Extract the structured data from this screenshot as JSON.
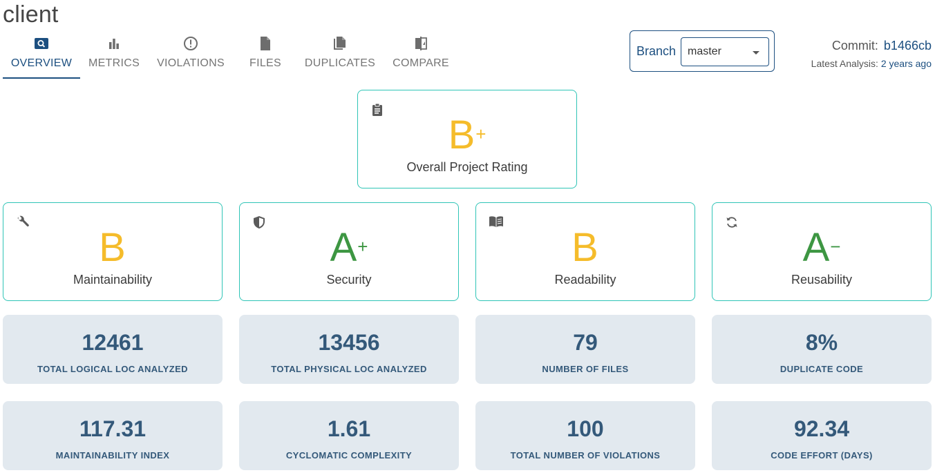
{
  "project": {
    "title": "client"
  },
  "tabs": [
    {
      "label": "OVERVIEW",
      "icon": "search-icon",
      "active": true
    },
    {
      "label": "METRICS",
      "icon": "bar-chart-icon",
      "active": false
    },
    {
      "label": "VIOLATIONS",
      "icon": "alert-circle-icon",
      "active": false
    },
    {
      "label": "FILES",
      "icon": "file-icon",
      "active": false
    },
    {
      "label": "DUPLICATES",
      "icon": "copy-icon",
      "active": false
    },
    {
      "label": "COMPARE",
      "icon": "compare-icon",
      "active": false
    }
  ],
  "branch": {
    "label": "Branch",
    "selected": "master"
  },
  "commit": {
    "label": "Commit:",
    "hash": "b1466cb",
    "analysis_label": "Latest Analysis:",
    "analysis_value": "2 years ago"
  },
  "overall": {
    "grade": "B",
    "modifier": "+",
    "label": "Overall Project Rating",
    "icon": "clipboard-icon"
  },
  "ratings": [
    {
      "grade": "B",
      "modifier": "",
      "label": "Maintainability",
      "icon": "wrench-icon",
      "color": "#f5bc2b"
    },
    {
      "grade": "A",
      "modifier": "+",
      "label": "Security",
      "icon": "shield-icon",
      "color": "#3d9642"
    },
    {
      "grade": "B",
      "modifier": "",
      "label": "Readability",
      "icon": "book-icon",
      "color": "#f5bc2b"
    },
    {
      "grade": "A",
      "modifier": "−",
      "label": "Reusability",
      "icon": "refresh-icon",
      "color": "#3d9642"
    }
  ],
  "stats": [
    {
      "value": "12461",
      "label": "TOTAL LOGICAL LOC ANALYZED"
    },
    {
      "value": "13456",
      "label": "TOTAL PHYSICAL LOC ANALYZED"
    },
    {
      "value": "79",
      "label": "NUMBER OF FILES"
    },
    {
      "value": "8%",
      "label": "DUPLICATE CODE"
    },
    {
      "value": "117.31",
      "label": "MAINTAINABILITY INDEX"
    },
    {
      "value": "1.61",
      "label": "CYCLOMATIC COMPLEXITY"
    },
    {
      "value": "100",
      "label": "TOTAL NUMBER OF VIOLATIONS"
    },
    {
      "value": "92.34",
      "label": "CODE EFFORT (DAYS)"
    }
  ],
  "colors": {
    "accent": "#1c4f80",
    "card_border": "#2ec4b6",
    "grade_b": "#f5bc2b",
    "grade_a": "#3d9642",
    "stat_bg": "#e2e9ef",
    "stat_text": "#34597a"
  }
}
